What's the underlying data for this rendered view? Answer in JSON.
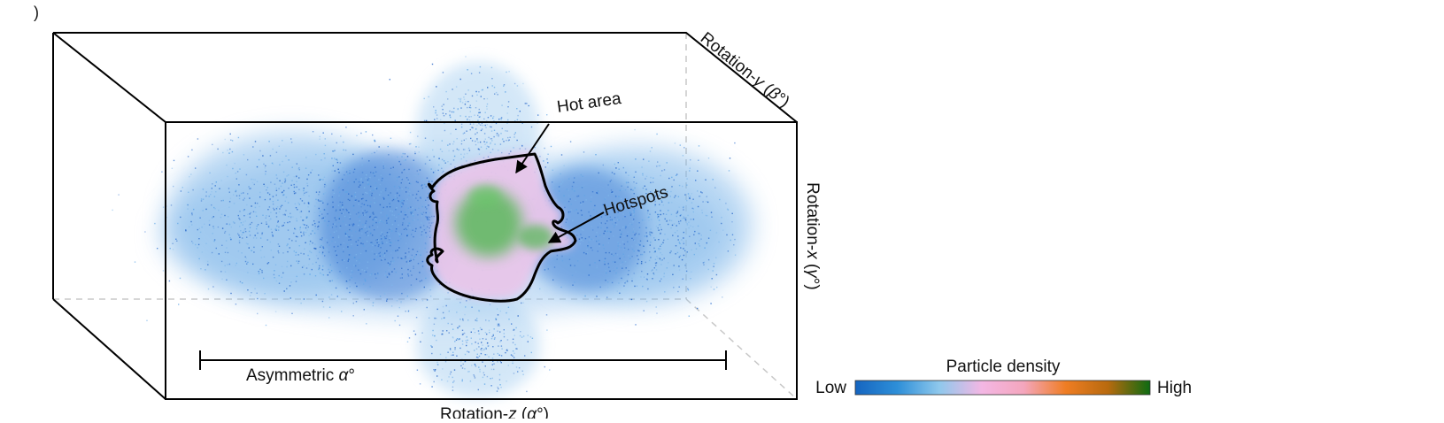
{
  "figure": {
    "panel_label": ")",
    "axes": {
      "rotation_y": {
        "prefix": "Rotation-",
        "var": "y",
        "suffix": " (",
        "sym": "β",
        "unit": "°)"
      },
      "rotation_x": {
        "prefix": "Rotation-",
        "var": "x",
        "suffix": " (",
        "sym": "γ",
        "unit": "°)"
      },
      "rotation_z": {
        "prefix": "Rotation-",
        "var": "z",
        "suffix": " (",
        "sym": "α",
        "unit": "°)"
      }
    },
    "annotations": {
      "hot_area": "Hot area",
      "hotspots": "Hotspots",
      "asymmetric": {
        "text": "Asymmetric ",
        "sym": "α",
        "unit": "°"
      }
    },
    "colorbar": {
      "title": "Particle density",
      "low": "Low",
      "high": "High",
      "stops": [
        "#1565c0",
        "#2e8fd8",
        "#8fc8ec",
        "#f3b7e4",
        "#f4a6bd",
        "#ef7d23",
        "#b86a0e",
        "#0d6b12"
      ]
    },
    "colors": {
      "cloud_blue": "#2d6fd0",
      "cloud_light": "#7fb7ea",
      "hot_pink": "#e8c6ea",
      "hotspot_green": "#5cb85c",
      "outline": "#000000",
      "dashed_edge": "#c8c8c8"
    }
  }
}
